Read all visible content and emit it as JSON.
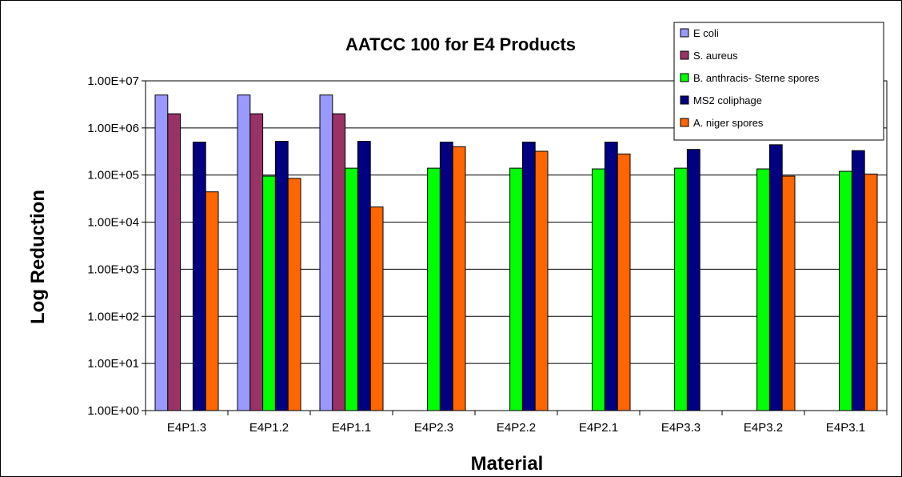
{
  "chart_data": {
    "type": "bar",
    "title": "AATCC 100 for E4 Products",
    "xlabel": "Material",
    "ylabel": "Log Reduction",
    "yscale": "log",
    "ylim": [
      1,
      10000000
    ],
    "yticks": [
      "1.00E+00",
      "1.00E+01",
      "1.00E+02",
      "1.00E+03",
      "1.00E+04",
      "1.00E+05",
      "1.00E+06",
      "1.00E+07"
    ],
    "grid": "horizontal",
    "legend_position": "top-right",
    "categories": [
      "E4P1.3",
      "E4P1.2",
      "E4P1.1",
      "E4P2.3",
      "E4P2.2",
      "E4P2.1",
      "E4P3.3",
      "E4P3.2",
      "E4P3.1"
    ],
    "series": [
      {
        "name": "E coli",
        "color": "#9999FF",
        "values": [
          5000000,
          5000000,
          5000000,
          null,
          null,
          null,
          null,
          null,
          null
        ]
      },
      {
        "name": "S. aureus",
        "color": "#993366",
        "values": [
          2000000,
          2000000,
          2000000,
          null,
          null,
          null,
          null,
          null,
          null
        ]
      },
      {
        "name": "B. anthracis- Sterne spores",
        "color": "#00FF00",
        "values": [
          null,
          95000,
          140000,
          140000,
          140000,
          135000,
          140000,
          135000,
          120000
        ]
      },
      {
        "name": "MS2 coliphage",
        "color": "#000080",
        "values": [
          500000,
          520000,
          520000,
          500000,
          500000,
          500000,
          350000,
          440000,
          330000
        ]
      },
      {
        "name": "A. niger spores",
        "color": "#FF6600",
        "values": [
          44000,
          85000,
          21000,
          400000,
          320000,
          280000,
          null,
          95000,
          105000
        ]
      }
    ]
  }
}
